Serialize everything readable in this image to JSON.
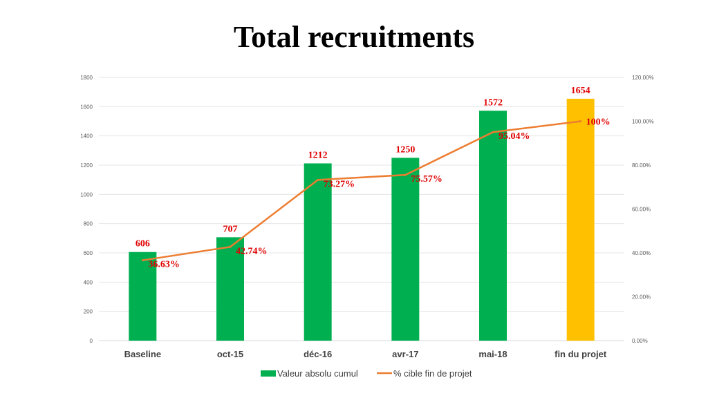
{
  "chart_data": {
    "type": "bar",
    "title": "Total recruitments",
    "categories": [
      "Baseline",
      "oct-15",
      "déc-16",
      "avr-17",
      "mai-18",
      "fin du projet"
    ],
    "series": [
      {
        "name": "Valeur absolu cumul",
        "type": "bar",
        "axis": "left",
        "values": [
          606,
          707,
          1212,
          1250,
          1572,
          1654
        ],
        "labels": [
          "606",
          "707",
          "1212",
          "1250",
          "1572",
          "1654"
        ],
        "colors": [
          "#00b050",
          "#00b050",
          "#00b050",
          "#00b050",
          "#00b050",
          "#ffc000"
        ]
      },
      {
        "name": "% cible fin de projet",
        "type": "line",
        "axis": "right",
        "values": [
          36.63,
          42.74,
          73.27,
          75.57,
          95.04,
          100
        ],
        "labels": [
          "36.63%",
          "42.74%",
          "73.27%",
          "75.57%",
          "95.04%",
          "100%"
        ],
        "color": "#ed7d31"
      }
    ],
    "y_left": {
      "range": [
        0,
        1800
      ],
      "ticks": [
        "0",
        "200",
        "400",
        "600",
        "800",
        "1000",
        "1200",
        "1400",
        "1600",
        "1800"
      ]
    },
    "y_right": {
      "range": [
        0,
        120
      ],
      "ticks": [
        "0.00%",
        "20.00%",
        "40.00%",
        "60.00%",
        "80.00%",
        "100.00%",
        "120.00%"
      ]
    },
    "grid": true,
    "legend": "bottom",
    "data_label_color": "#e00000"
  }
}
